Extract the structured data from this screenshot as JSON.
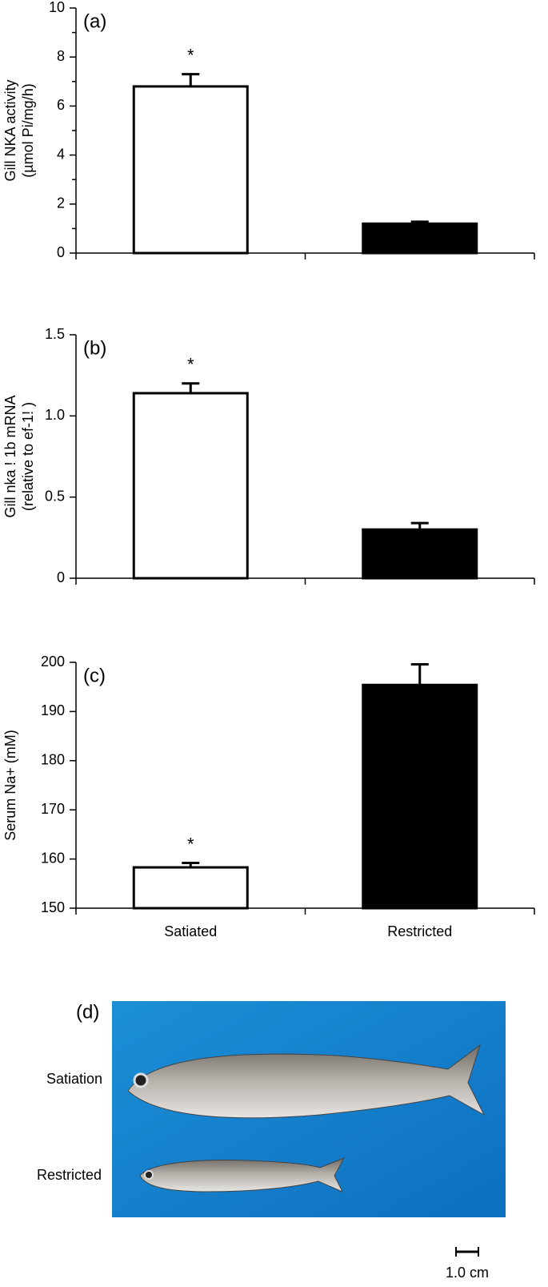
{
  "chart_data": [
    {
      "type": "bar",
      "panel_label": "(a)",
      "y_label": [
        "Gill NKA activity",
        "(µmol Pi/mg/h)"
      ],
      "significance_marker": "*",
      "categories": [
        null,
        null
      ],
      "values": [
        6.8,
        1.2
      ],
      "errors": [
        0.5,
        0.08
      ],
      "colors": [
        "#ffffff",
        "#000000"
      ],
      "ylim": [
        0,
        10
      ],
      "yticks": [
        0,
        2,
        4,
        6,
        8,
        10
      ],
      "minor_yticks": [
        1,
        3,
        5,
        7,
        9
      ]
    },
    {
      "type": "bar",
      "panel_label": "(b)",
      "y_label": [
        "Gill nka ! 1b mRNA",
        "(relative to ef-1! )"
      ],
      "significance_marker": "*",
      "categories": [
        null,
        null
      ],
      "values": [
        1.14,
        0.3
      ],
      "errors": [
        0.06,
        0.04
      ],
      "colors": [
        "#ffffff",
        "#000000"
      ],
      "ylim": [
        0,
        1.5
      ],
      "yticks": [
        0,
        0.5,
        {
          "value": 1,
          "label": "1.0"
        },
        1.5
      ]
    },
    {
      "type": "bar",
      "panel_label": "(c)",
      "y_label": [
        "Serum Na+ (mM)"
      ],
      "significance_marker": "*",
      "categories": [
        "Satiated",
        "Restricted"
      ],
      "values": [
        158.3,
        195.4
      ],
      "errors": [
        0.9,
        4.2
      ],
      "colors": [
        "#ffffff",
        "#000000"
      ],
      "ylim": [
        150,
        200
      ],
      "yticks": [
        150,
        160,
        170,
        180,
        190,
        200
      ]
    }
  ],
  "photo_panel": {
    "label": "(d)",
    "fish_labels": [
      "Satiation",
      "Restricted"
    ],
    "scale_bar": "1.0 cm"
  }
}
